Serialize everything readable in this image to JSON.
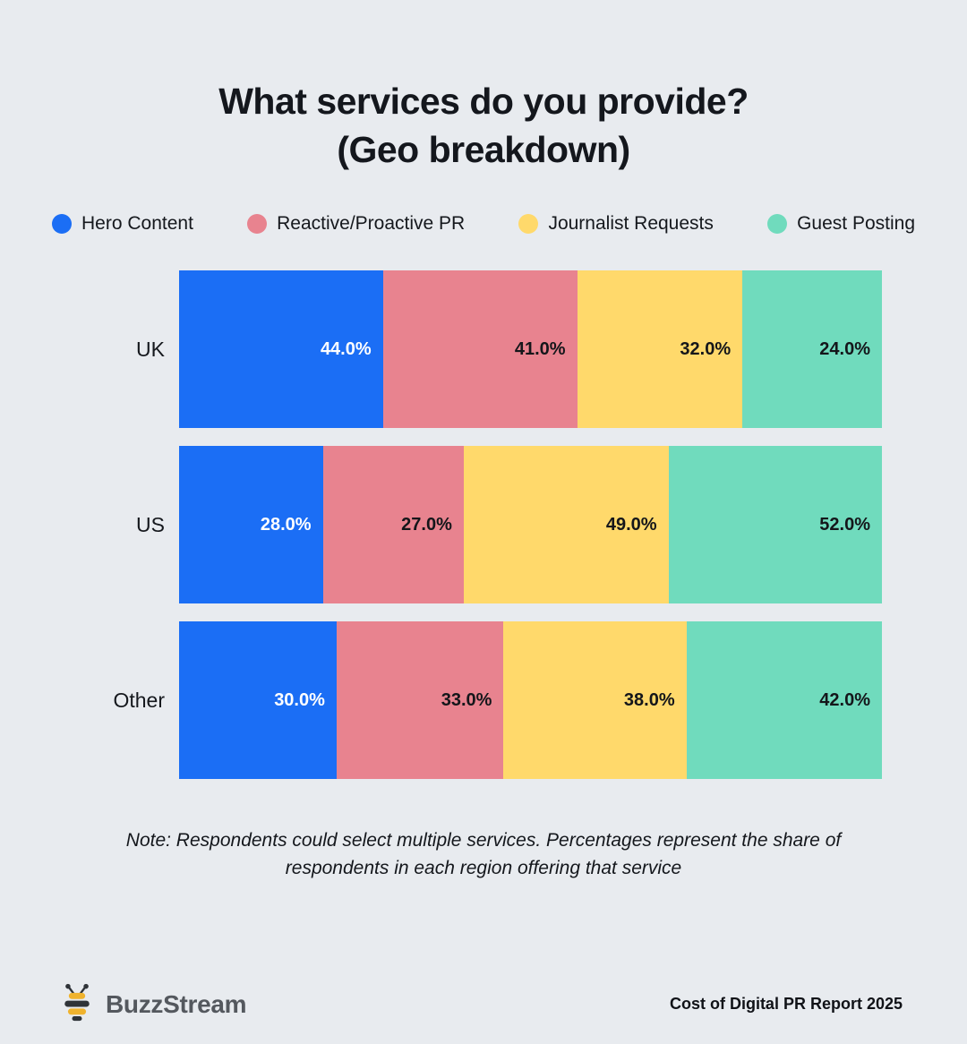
{
  "title": {
    "line1": "What services do you provide?",
    "line2": "(Geo breakdown)"
  },
  "legend": [
    {
      "label": "Hero Content",
      "color": "#1b6ef5"
    },
    {
      "label": "Reactive/Proactive PR",
      "color": "#e8838f"
    },
    {
      "label": "Journalist Requests",
      "color": "#ffd96b"
    },
    {
      "label": "Guest Posting",
      "color": "#70dbbd"
    }
  ],
  "chart_data": {
    "type": "bar",
    "variant": "horizontal-stacked-normalized",
    "title": "What services do you provide? (Geo breakdown)",
    "categories": [
      "UK",
      "US",
      "Other"
    ],
    "series": [
      {
        "name": "Hero Content",
        "color": "#1b6ef5",
        "label_color": "#ffffff",
        "values": [
          44.0,
          28.0,
          30.0
        ]
      },
      {
        "name": "Reactive/Proactive PR",
        "color": "#e8838f",
        "label_color": "#14161a",
        "values": [
          41.0,
          27.0,
          33.0
        ]
      },
      {
        "name": "Journalist Requests",
        "color": "#ffd96b",
        "label_color": "#14161a",
        "values": [
          32.0,
          49.0,
          38.0
        ]
      },
      {
        "name": "Guest Posting",
        "color": "#70dbbd",
        "label_color": "#14161a",
        "values": [
          24.0,
          52.0,
          42.0
        ]
      }
    ],
    "value_format": "percent-1dp",
    "legend_position": "top",
    "grid": false
  },
  "note": "Note: Respondents could select multiple services. Percentages represent the share of respondents in each region offering that service",
  "footer": {
    "brand": "BuzzStream",
    "report": "Cost of Digital PR Report 2025"
  },
  "colors": {
    "background": "#e8ebef",
    "text": "#14171d",
    "bee_yellow": "#f0b32e",
    "bee_dark": "#2f3338"
  }
}
